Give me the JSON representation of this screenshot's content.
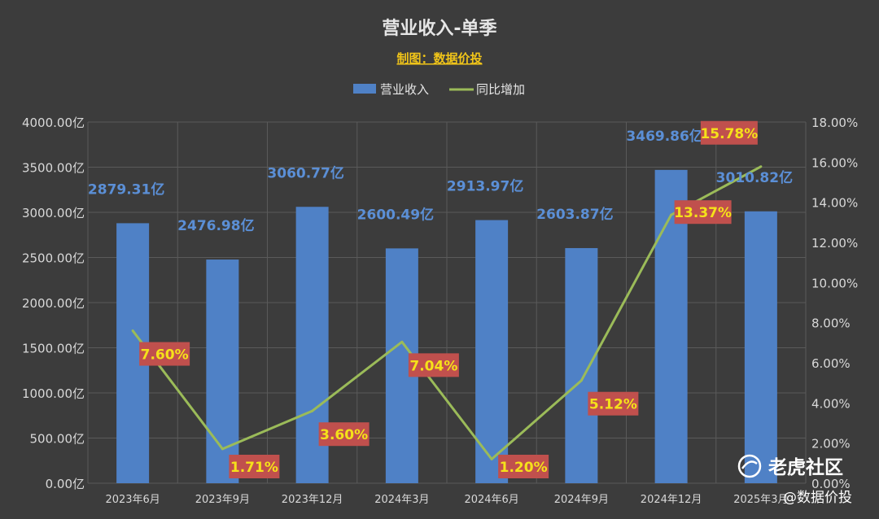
{
  "chart_data": {
    "type": "bar+line",
    "title": "营业收入-单季",
    "subtitle": "制图：数据价投",
    "categories": [
      "2023年6月",
      "2023年9月",
      "2023年12月",
      "2024年3月",
      "2024年6月",
      "2024年9月",
      "2024年12月",
      "2025年3月"
    ],
    "series": [
      {
        "name": "营业收入",
        "type": "bar",
        "axis": "left",
        "color": "#4f81c6",
        "values": [
          2879.31,
          2476.98,
          3060.77,
          2600.49,
          2913.97,
          2603.87,
          3469.86,
          3010.82
        ],
        "labels": [
          "2879.31亿",
          "2476.98亿",
          "3060.77亿",
          "2600.49亿",
          "2913.97亿",
          "2603.87亿",
          "3469.86亿",
          "3010.82亿"
        ]
      },
      {
        "name": "同比增加",
        "type": "line",
        "axis": "right",
        "color": "#9bbb59",
        "values": [
          7.6,
          1.71,
          3.6,
          7.04,
          1.2,
          5.12,
          13.37,
          15.78
        ],
        "labels": [
          "7.60%",
          "1.71%",
          "3.60%",
          "7.04%",
          "1.20%",
          "5.12%",
          "13.37%",
          "15.78%"
        ]
      }
    ],
    "y_left": {
      "range": [
        0,
        4000
      ],
      "ticks": [
        "0.00亿",
        "500.00亿",
        "1000.00亿",
        "1500.00亿",
        "2000.00亿",
        "2500.00亿",
        "3000.00亿",
        "3500.00亿",
        "4000.00亿"
      ]
    },
    "y_right": {
      "range": [
        0,
        18
      ],
      "ticks": [
        "0.00%",
        "2.00%",
        "4.00%",
        "6.00%",
        "8.00%",
        "10.00%",
        "12.00%",
        "14.00%",
        "16.00%",
        "18.00%"
      ]
    },
    "legend_position": "top-center",
    "grid": true,
    "colors": {
      "background": "#3c3c3c",
      "grid": "#5a5a5a",
      "bar_label": "#5b8fd6",
      "line_label_bg": "#c0504d",
      "line_label_text": "#f5e11a"
    }
  },
  "watermark": {
    "brand": "老虎社区",
    "handle": "@数据价投"
  }
}
